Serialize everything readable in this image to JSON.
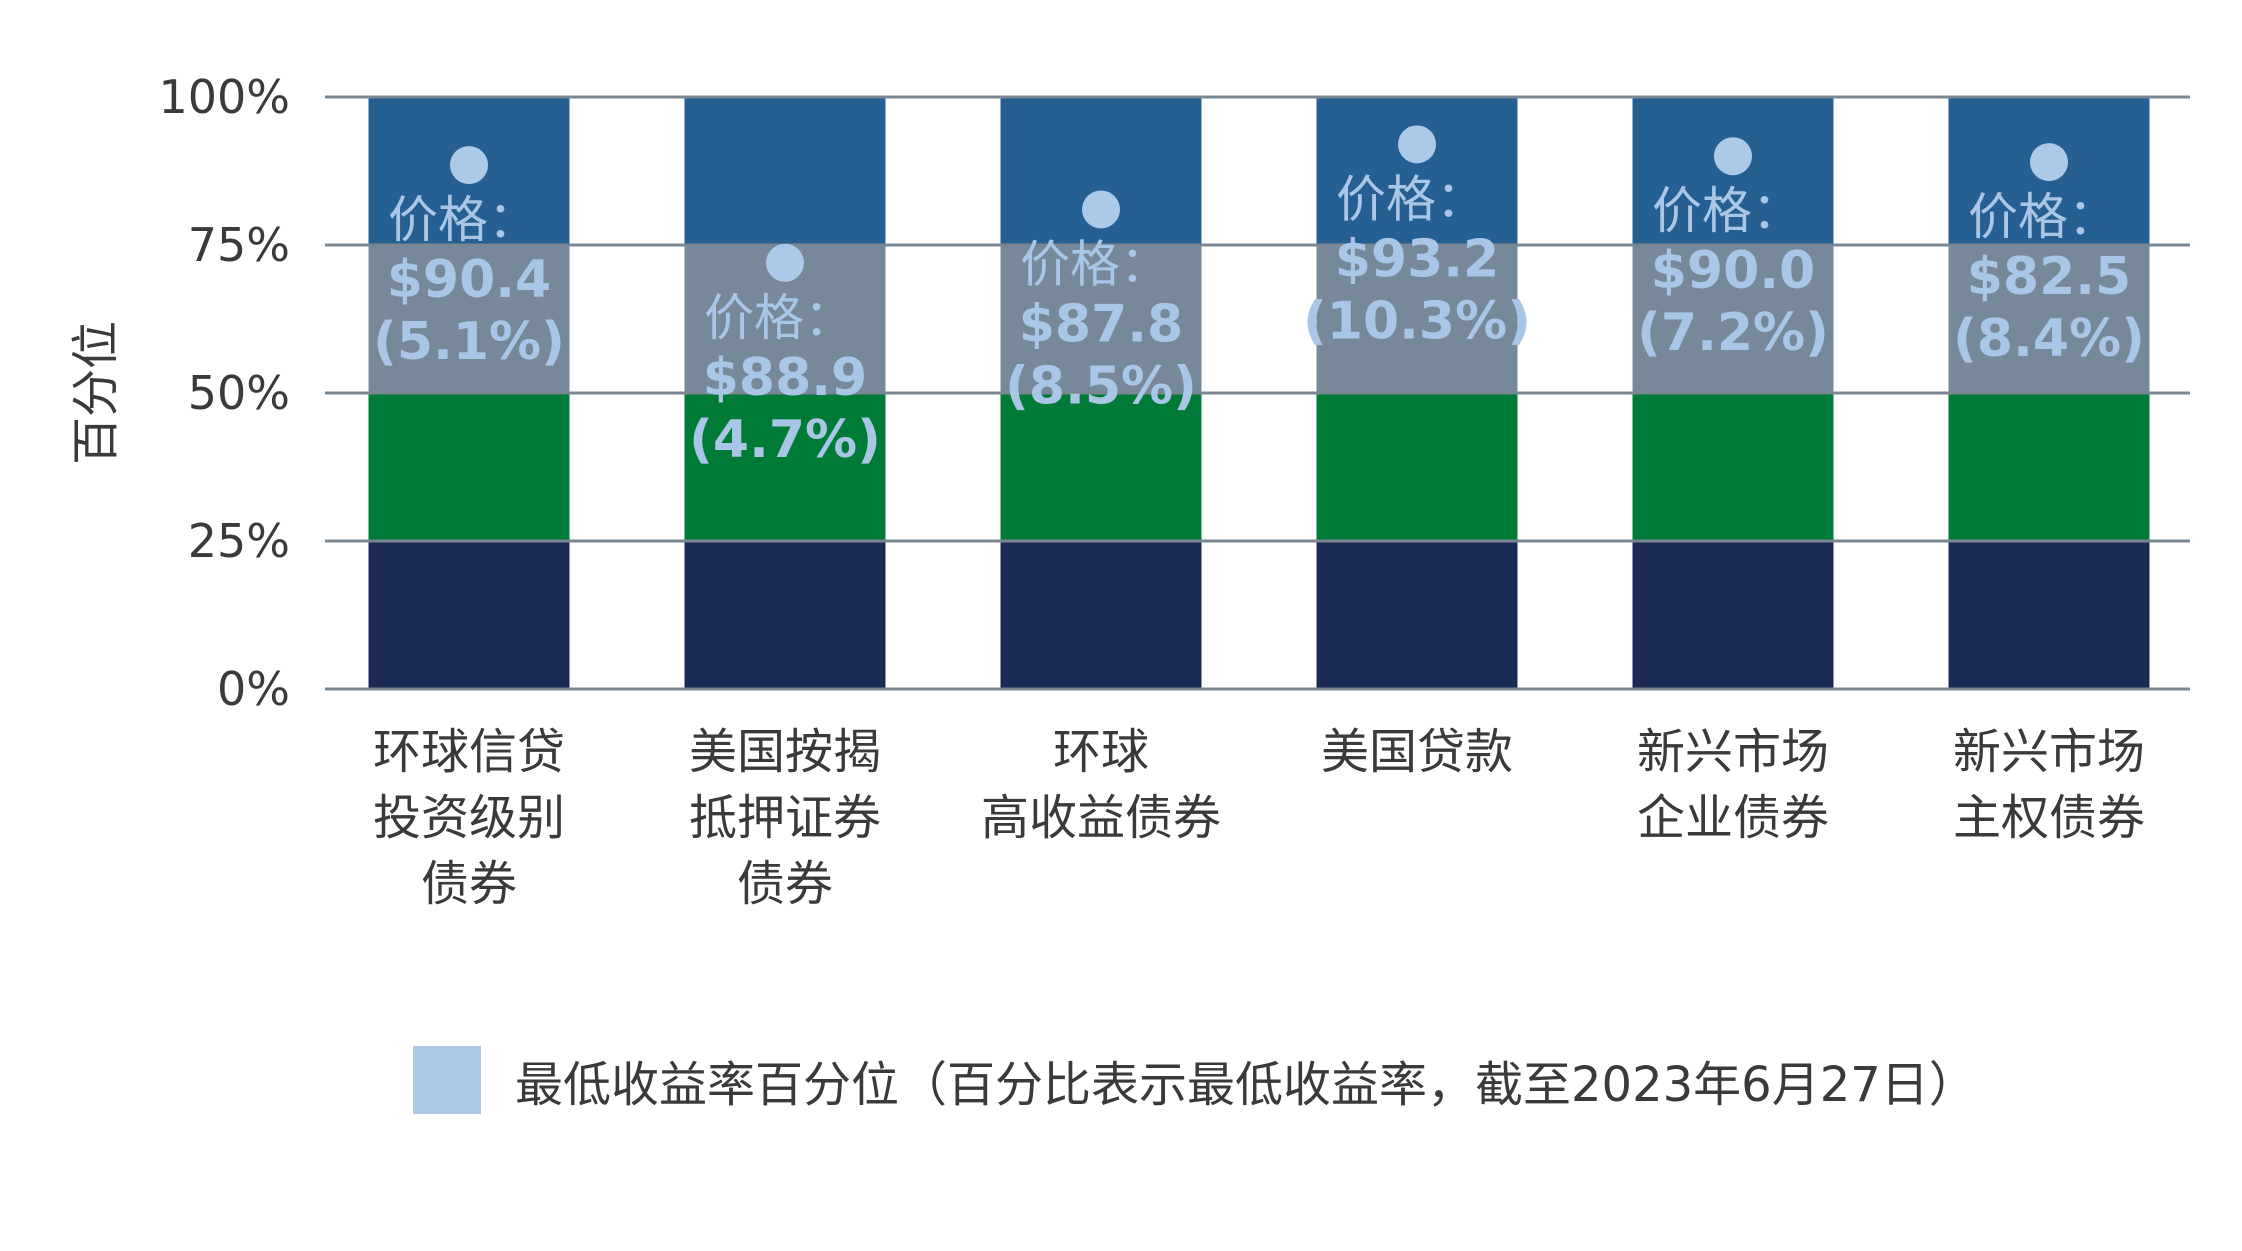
{
  "chart_data": {
    "type": "bar",
    "stacked": true,
    "ylabel": "百分位",
    "ylim": [
      0,
      100
    ],
    "yticks": [
      0,
      25,
      50,
      75,
      100
    ],
    "ytick_labels": [
      "0%",
      "25%",
      "50%",
      "75%",
      "100%"
    ],
    "grid": true,
    "band_colors": [
      "#1b2955",
      "#007a37",
      "#778898",
      "#266093"
    ],
    "band_values": [
      25,
      25,
      25,
      25
    ],
    "categories": [
      {
        "lines": [
          "环球信贷",
          "投资级别",
          "债券"
        ]
      },
      {
        "lines": [
          "美国按揭",
          "抵押证券",
          "债券"
        ]
      },
      {
        "lines": [
          "环球",
          "高收益债券"
        ]
      },
      {
        "lines": [
          "美国贷款"
        ]
      },
      {
        "lines": [
          "新兴市场",
          "企业债券"
        ]
      },
      {
        "lines": [
          "新兴市场",
          "主权债券"
        ]
      }
    ],
    "series": [
      {
        "name": "最低收益率百分位（百分比表示最低收益率，截至2023年6月27日）",
        "marker_color": "#adc9e8",
        "values": [
          88.5,
          72,
          81,
          92,
          90,
          89
        ],
        "labels": [
          {
            "word": "价格：",
            "price": "$90.4",
            "yield": "(5.1%)"
          },
          {
            "word": "价格：",
            "price": "$88.9",
            "yield": "(4.7%)"
          },
          {
            "word": "价格：",
            "price": "$87.8",
            "yield": "(8.5%)"
          },
          {
            "word": "价格：",
            "price": "$93.2",
            "yield": "(10.3%)"
          },
          {
            "word": "价格：",
            "price": "$90.0",
            "yield": "(7.2%)"
          },
          {
            "word": "价格：",
            "price": "$82.5",
            "yield": "(8.4%)"
          }
        ]
      }
    ],
    "legend": {
      "position": "bottom",
      "label": "最低收益率百分位（百分比表示最低收益率，截至2023年6月27日）",
      "color": "#adc9e8"
    }
  }
}
